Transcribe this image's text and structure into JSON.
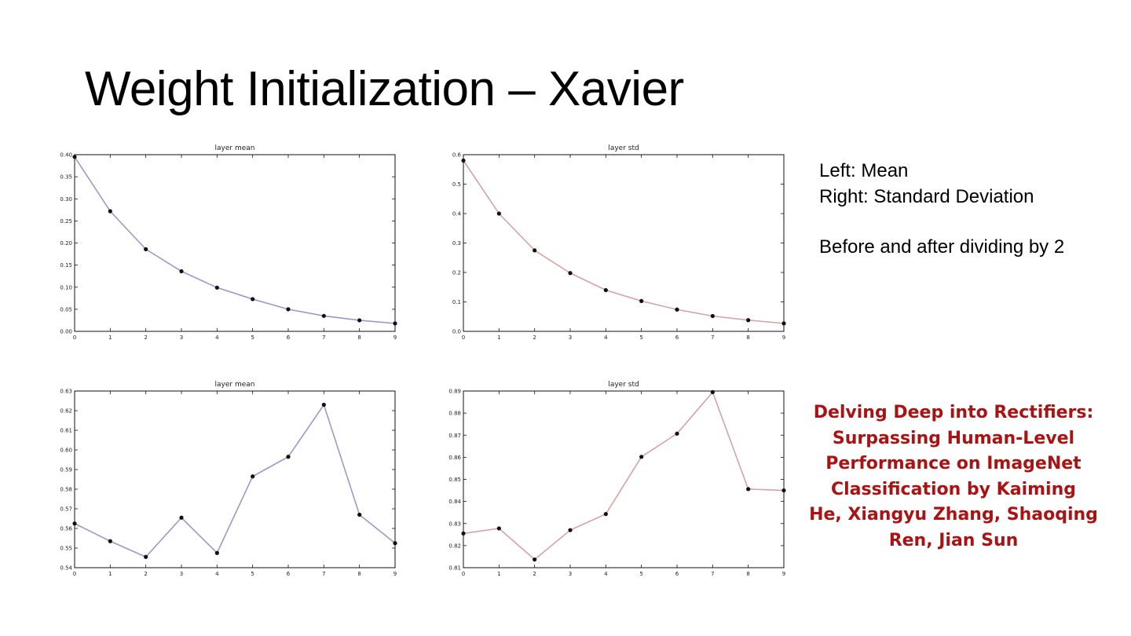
{
  "slide": {
    "title": "Weight Initialization – Xavier"
  },
  "notes": {
    "line1": "Left: Mean",
    "line2": "Right: Standard Deviation",
    "line3": "Before and after dividing by 2"
  },
  "citation": {
    "lines": [
      "Delving Deep into Rectifiers:",
      "Surpassing Human-Level",
      "Performance on ImageNet",
      "Classification by Kaiming",
      "He,  Xiangyu Zhang,  Shaoqing",
      "Ren,  Jian Sun"
    ],
    "color": "#a91313"
  },
  "chart_data": [
    {
      "id": "top-left",
      "type": "line",
      "title": "layer mean",
      "xlabel": "",
      "ylabel": "",
      "x": [
        0,
        1,
        2,
        3,
        4,
        5,
        6,
        7,
        8,
        9
      ],
      "series": [
        {
          "values": [
            0.395,
            0.272,
            0.186,
            0.136,
            0.099,
            0.073,
            0.05,
            0.035,
            0.025,
            0.018
          ],
          "color": "#9a9ac8"
        }
      ],
      "xlim": [
        0,
        9
      ],
      "ylim": [
        0.0,
        0.4
      ],
      "xticks": [
        0,
        1,
        2,
        3,
        4,
        5,
        6,
        7,
        8,
        9
      ],
      "yticks": [
        "0.00",
        "0.05",
        "0.10",
        "0.15",
        "0.20",
        "0.25",
        "0.30",
        "0.35",
        "0.40"
      ],
      "grid": false
    },
    {
      "id": "top-right",
      "type": "line",
      "title": "layer std",
      "xlabel": "",
      "ylabel": "",
      "x": [
        0,
        1,
        2,
        3,
        4,
        5,
        6,
        7,
        8,
        9
      ],
      "series": [
        {
          "values": [
            0.58,
            0.4,
            0.275,
            0.198,
            0.14,
            0.103,
            0.074,
            0.052,
            0.038,
            0.027
          ],
          "color": "#d4a3a3"
        }
      ],
      "xlim": [
        0,
        9
      ],
      "ylim": [
        0.0,
        0.6
      ],
      "xticks": [
        0,
        1,
        2,
        3,
        4,
        5,
        6,
        7,
        8,
        9
      ],
      "yticks": [
        "0.0",
        "0.1",
        "0.2",
        "0.3",
        "0.4",
        "0.5",
        "0.6"
      ],
      "grid": false
    },
    {
      "id": "bottom-left",
      "type": "line",
      "title": "layer mean",
      "xlabel": "",
      "ylabel": "",
      "x": [
        0,
        1,
        2,
        3,
        4,
        5,
        6,
        7,
        8,
        9
      ],
      "series": [
        {
          "values": [
            0.5625,
            0.5535,
            0.5455,
            0.5655,
            0.5475,
            0.5865,
            0.5965,
            0.623,
            0.567,
            0.5525
          ],
          "color": "#9a9ac8"
        }
      ],
      "xlim": [
        0,
        9
      ],
      "ylim": [
        0.54,
        0.63
      ],
      "xticks": [
        0,
        1,
        2,
        3,
        4,
        5,
        6,
        7,
        8,
        9
      ],
      "yticks": [
        "0.54",
        "0.55",
        "0.56",
        "0.57",
        "0.58",
        "0.59",
        "0.60",
        "0.61",
        "0.62",
        "0.63"
      ],
      "grid": false
    },
    {
      "id": "bottom-right",
      "type": "line",
      "title": "layer std",
      "xlabel": "",
      "ylabel": "",
      "x": [
        0,
        1,
        2,
        3,
        4,
        5,
        6,
        7,
        8,
        9
      ],
      "series": [
        {
          "values": [
            0.8255,
            0.8278,
            0.8137,
            0.827,
            0.8343,
            0.8602,
            0.8707,
            0.8895,
            0.8456,
            0.845
          ],
          "color": "#d4a3a3"
        }
      ],
      "xlim": [
        0,
        9
      ],
      "ylim": [
        0.81,
        0.89
      ],
      "xticks": [
        0,
        1,
        2,
        3,
        4,
        5,
        6,
        7,
        8,
        9
      ],
      "yticks": [
        "0.81",
        "0.82",
        "0.83",
        "0.84",
        "0.85",
        "0.86",
        "0.87",
        "0.88",
        "0.89"
      ],
      "grid": false
    }
  ]
}
